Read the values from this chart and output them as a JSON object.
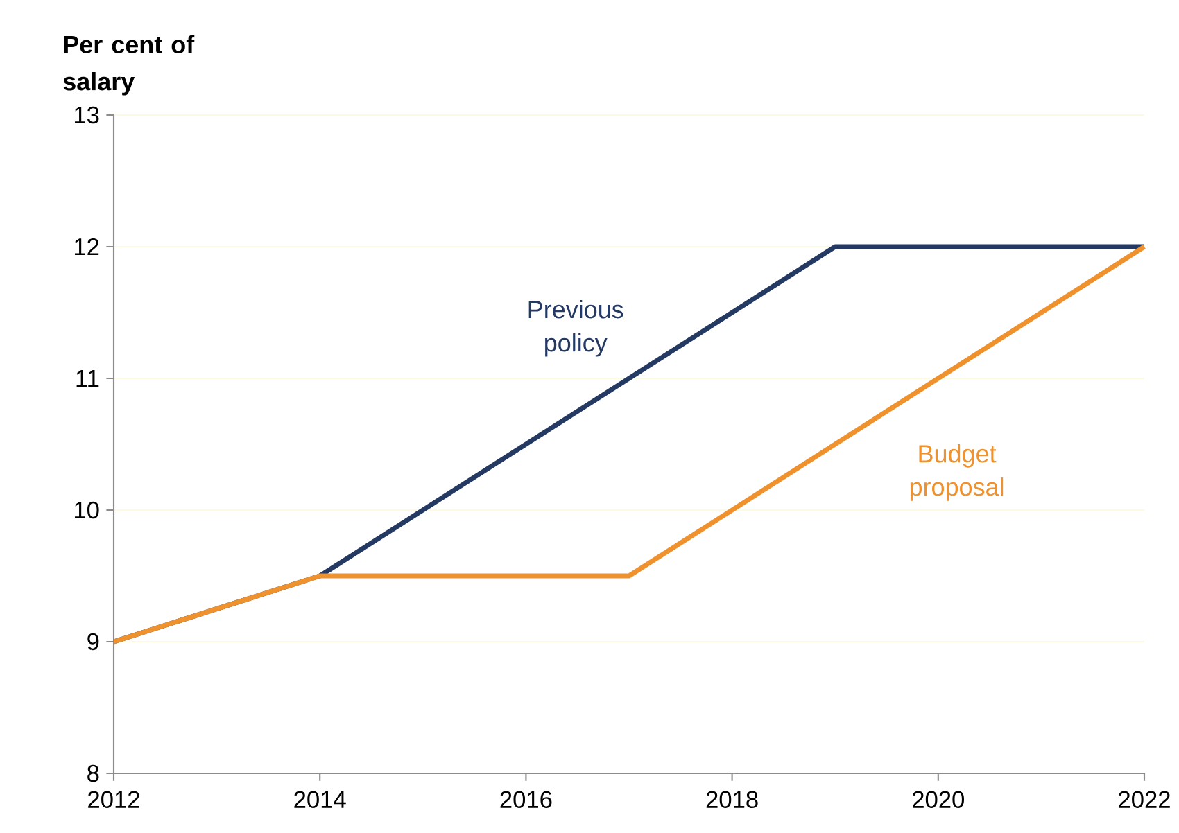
{
  "chart_data": {
    "type": "line",
    "ylabel": "Per cent of salary",
    "xlim": [
      2012,
      2022
    ],
    "xticks": [
      2012,
      2014,
      2016,
      2018,
      2020,
      2022
    ],
    "ylim": [
      8,
      13
    ],
    "yticks": [
      8,
      9,
      10,
      11,
      12,
      13
    ],
    "grid": "y",
    "legend": false,
    "marker": "none",
    "line_style": "solid",
    "series": [
      {
        "name": "Previous policy",
        "color": "#253a63",
        "x": [
          2012,
          2014,
          2019,
          2022
        ],
        "values": [
          9,
          9.5,
          12,
          12
        ]
      },
      {
        "name": "Budget proposal",
        "color": "#ef922d",
        "x": [
          2012,
          2014,
          2017,
          2022
        ],
        "values": [
          9,
          9.5,
          9.5,
          12
        ]
      }
    ]
  }
}
